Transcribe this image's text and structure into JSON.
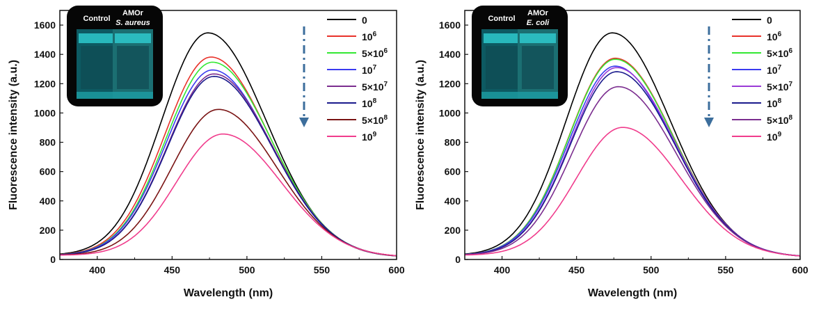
{
  "chart_data": [
    {
      "type": "line",
      "xlabel": "Wavelength (nm)",
      "ylabel": "Fluorescence intensity (a.u.)",
      "xlim": [
        375,
        600
      ],
      "ylim": [
        0,
        1700
      ],
      "xticks": [
        400,
        450,
        500,
        550,
        600
      ],
      "yticks": [
        0,
        200,
        400,
        600,
        800,
        1000,
        1200,
        1400,
        1600
      ],
      "inset": {
        "label_left": "Control",
        "label_right": "AMOr",
        "organism": "S. aureus"
      },
      "legend_placement": "top-right",
      "series": [
        {
          "name": "0",
          "base": "0",
          "exp": "",
          "color": "#000000",
          "peak": 1525,
          "center": 474
        },
        {
          "name": "10^6",
          "base": "10",
          "exp": "6",
          "color": "#e8322a",
          "peak": 1360,
          "center": 476
        },
        {
          "name": "5×10^6",
          "base": "5×10",
          "exp": "6",
          "color": "#33e833",
          "peak": 1325,
          "center": 477
        },
        {
          "name": "10^7",
          "base": "10",
          "exp": "7",
          "color": "#3a3af0",
          "peak": 1272,
          "center": 477
        },
        {
          "name": "5×10^7",
          "base": "5×10",
          "exp": "7",
          "color": "#7b2d8f",
          "peak": 1245,
          "center": 478
        },
        {
          "name": "10^8",
          "base": "10",
          "exp": "8",
          "color": "#1a1a8c",
          "peak": 1228,
          "center": 478
        },
        {
          "name": "5×10^8",
          "base": "5×10",
          "exp": "8",
          "color": "#7a1414",
          "peak": 1003,
          "center": 481
        },
        {
          "name": "10^9",
          "base": "10",
          "exp": "9",
          "color": "#f03c8c",
          "peak": 835,
          "center": 484
        }
      ]
    },
    {
      "type": "line",
      "xlabel": "Wavelength (nm)",
      "ylabel": "Fluorescence intensity (a.u.)",
      "xlim": [
        375,
        600
      ],
      "ylim": [
        0,
        1700
      ],
      "xticks": [
        400,
        450,
        500,
        550,
        600
      ],
      "yticks": [
        0,
        200,
        400,
        600,
        800,
        1000,
        1200,
        1400,
        1600
      ],
      "inset": {
        "label_left": "Control",
        "label_right": "AMOr",
        "organism": "E. coli"
      },
      "legend_placement": "top-right",
      "series": [
        {
          "name": "0",
          "base": "0",
          "exp": "",
          "color": "#000000",
          "peak": 1525,
          "center": 474
        },
        {
          "name": "10^6",
          "base": "10",
          "exp": "6",
          "color": "#e8322a",
          "peak": 1352,
          "center": 476
        },
        {
          "name": "5×10^6",
          "base": "5×10",
          "exp": "6",
          "color": "#33e833",
          "peak": 1345,
          "center": 476
        },
        {
          "name": "10^7",
          "base": "10",
          "exp": "7",
          "color": "#3a3af0",
          "peak": 1298,
          "center": 476
        },
        {
          "name": "5×10^7",
          "base": "5×10",
          "exp": "7",
          "color": "#9a3ad6",
          "peak": 1288,
          "center": 477
        },
        {
          "name": "10^8",
          "base": "10",
          "exp": "8",
          "color": "#1a1a8c",
          "peak": 1260,
          "center": 477
        },
        {
          "name": "5×10^8",
          "base": "5×10",
          "exp": "8",
          "color": "#7b2d8f",
          "peak": 1158,
          "center": 478
        },
        {
          "name": "10^9",
          "base": "10",
          "exp": "9",
          "color": "#f03c8c",
          "peak": 880,
          "center": 481
        }
      ]
    }
  ]
}
